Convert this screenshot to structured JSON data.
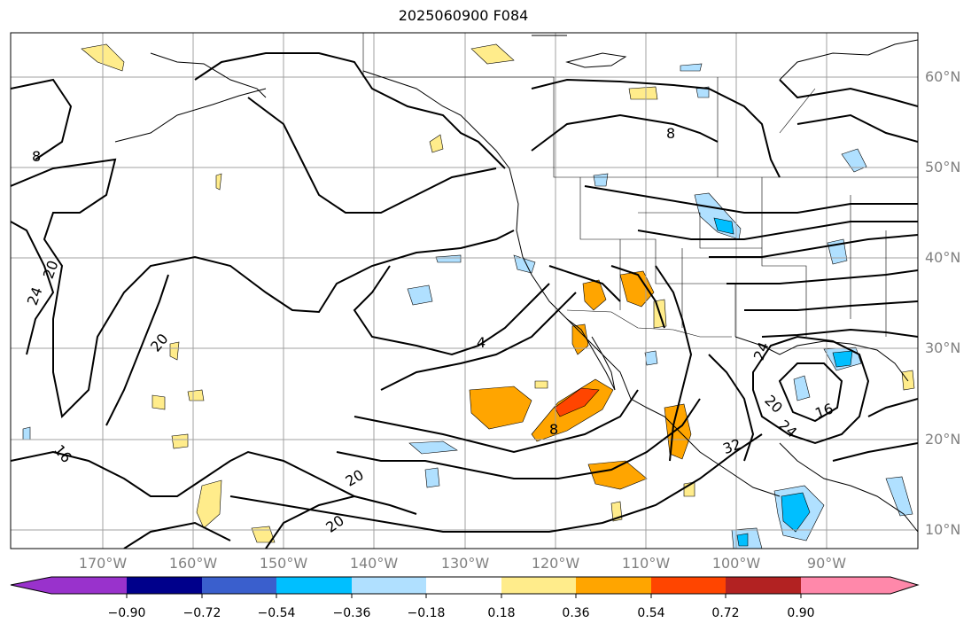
{
  "title": "2025060900 F084",
  "latitude_labels": [
    "60°N",
    "50°N",
    "40°N",
    "30°N",
    "20°N",
    "10°N"
  ],
  "longitude_labels": [
    "170°W",
    "160°W",
    "150°W",
    "140°W",
    "130°W",
    "120°W",
    "110°W",
    "100°W",
    "90°W"
  ],
  "contour_labels": [
    "8",
    "20",
    "24",
    "20",
    "16",
    "20",
    "20",
    "4",
    "8",
    "8",
    "24",
    "20",
    "24",
    "16",
    "32"
  ],
  "colorbar": {
    "tick_labels": [
      "−0.90",
      "−0.72",
      "−0.54",
      "−0.36",
      "−0.18",
      "0.18",
      "0.36",
      "0.54",
      "0.72",
      "0.90"
    ],
    "colors": [
      "#9932cc",
      "#00008b",
      "#3a5fcd",
      "#00bfff",
      "#b0e0ff",
      "#ffffff",
      "#ffec8b",
      "#ffa500",
      "#ff4500",
      "#b22222",
      "#ff88aa"
    ]
  }
}
